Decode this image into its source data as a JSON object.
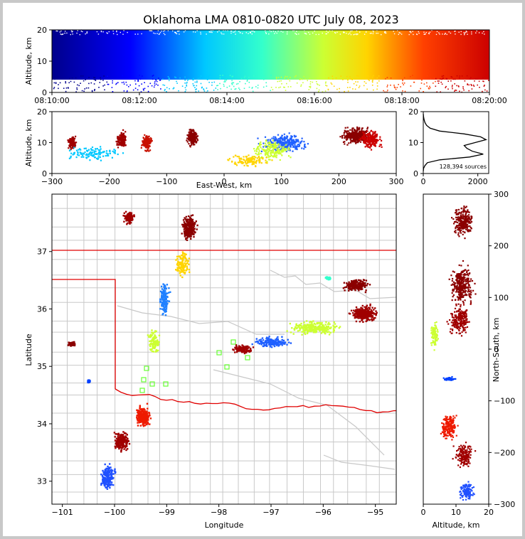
{
  "title": "Oklahoma LMA 0810-0820 UTC July 08, 2023",
  "chart_data": [
    {
      "type": "scatter",
      "panel": "time-height",
      "ylabel": "Altitude, km",
      "xlabel": "",
      "y_ticks": [
        "0",
        "10",
        "20"
      ],
      "x_ticks": [
        "08:10:00",
        "08:12:00",
        "08:14:00",
        "08:16:00",
        "08:18:00",
        "08:20:00"
      ],
      "ylim": [
        0,
        20
      ],
      "xlim": [
        "08:10:00",
        "08:20:00"
      ],
      "color_by": "time",
      "colormap": [
        "#00008b",
        "#0000ff",
        "#00c8ff",
        "#33ffcc",
        "#ccff33",
        "#ffd400",
        "#ff4000",
        "#cc0000"
      ]
    },
    {
      "type": "scatter",
      "panel": "east-west-height",
      "xlabel": "East-West, km",
      "ylabel": "Altitude, km",
      "x_ticks": [
        "−300",
        "−200",
        "−100",
        "0",
        "100",
        "200",
        "300"
      ],
      "y_ticks": [
        "0",
        "10",
        "20"
      ],
      "xlim": [
        -300,
        300
      ],
      "ylim": [
        0,
        20
      ]
    },
    {
      "type": "line",
      "panel": "altitude-histogram",
      "annotation": "128,394 sources",
      "x_ticks": [
        "0",
        "2000"
      ],
      "y_ticks": [
        "0",
        "10",
        "20"
      ],
      "xlim": [
        0,
        2400
      ],
      "ylim": [
        0,
        20
      ],
      "profile": [
        {
          "count": 0,
          "alt": 0
        },
        {
          "count": 10,
          "alt": 1
        },
        {
          "count": 60,
          "alt": 2
        },
        {
          "count": 150,
          "alt": 3
        },
        {
          "count": 600,
          "alt": 4
        },
        {
          "count": 1700,
          "alt": 5
        },
        {
          "count": 2200,
          "alt": 6
        },
        {
          "count": 1800,
          "alt": 7
        },
        {
          "count": 1600,
          "alt": 8
        },
        {
          "count": 1500,
          "alt": 9
        },
        {
          "count": 1900,
          "alt": 10
        },
        {
          "count": 2300,
          "alt": 11
        },
        {
          "count": 2100,
          "alt": 12
        },
        {
          "count": 1500,
          "alt": 13
        },
        {
          "count": 600,
          "alt": 14
        },
        {
          "count": 250,
          "alt": 15
        },
        {
          "count": 120,
          "alt": 16
        },
        {
          "count": 60,
          "alt": 17
        },
        {
          "count": 30,
          "alt": 18
        },
        {
          "count": 10,
          "alt": 19
        },
        {
          "count": 0,
          "alt": 20
        }
      ]
    },
    {
      "type": "scatter",
      "panel": "plan-view",
      "xlabel": "Longitude",
      "ylabel": "Latitude",
      "x_ticks": [
        "−101",
        "−100",
        "−99",
        "−98",
        "−97",
        "−96",
        "−95"
      ],
      "y_ticks": [
        "33",
        "34",
        "35",
        "36",
        "37"
      ],
      "xlim": [
        -101.2,
        -94.6
      ],
      "ylim": [
        32.6,
        38.0
      ]
    },
    {
      "type": "scatter",
      "panel": "north-south-height",
      "xlabel": "Altitude, km",
      "ylabel": "North-South, km",
      "x_ticks": [
        "0",
        "10",
        "20"
      ],
      "y_ticks": [
        "−300",
        "−200",
        "−100",
        "0",
        "100",
        "200",
        "300"
      ],
      "xlim": [
        0,
        20
      ],
      "ylim": [
        -300,
        300
      ]
    }
  ]
}
